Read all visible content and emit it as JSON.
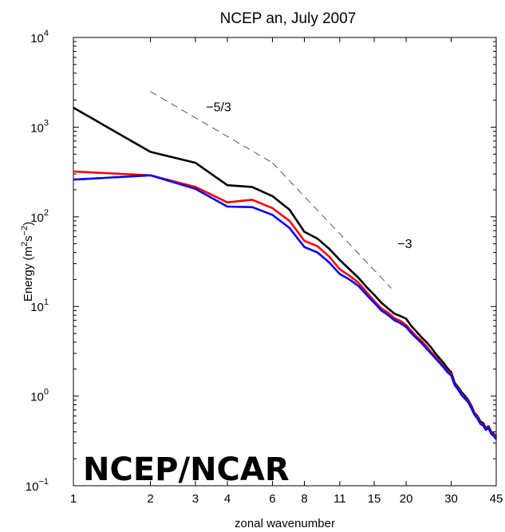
{
  "chart_data": {
    "type": "line",
    "title": "NCEP an, July 2007",
    "xlabel": "zonal wavenumber",
    "ylabel_prefix": "Energy (m",
    "ylabel_sup1": "2",
    "ylabel_mid": "s",
    "ylabel_sup2": "−2",
    "ylabel_suffix": ")",
    "xscale": "log",
    "yscale": "log",
    "xlim": [
      1,
      45
    ],
    "ylim": [
      0.1,
      10000
    ],
    "x_ticks": [
      1,
      2,
      3,
      4,
      6,
      8,
      11,
      15,
      20,
      30,
      45
    ],
    "x_tick_labels": [
      "1",
      "2",
      "3",
      "4",
      "6",
      "8",
      "11",
      "15",
      "20",
      "30",
      "45"
    ],
    "y_ticks": [
      {
        "value": 0.1,
        "base": "10",
        "exp": "−1"
      },
      {
        "value": 1,
        "base": "10",
        "exp": "0"
      },
      {
        "value": 10,
        "base": "10",
        "exp": "1"
      },
      {
        "value": 100,
        "base": "10",
        "exp": "2"
      },
      {
        "value": 1000,
        "base": "10",
        "exp": "3"
      },
      {
        "value": 10000,
        "base": "10",
        "exp": "4"
      }
    ],
    "grid": false,
    "legend": "none",
    "watermark": "NCEP/NCAR",
    "series": [
      {
        "color": "#000000",
        "x": [
          1,
          2,
          3,
          4,
          5,
          6,
          7,
          8,
          9,
          10,
          11,
          12,
          13,
          14,
          15,
          16,
          17,
          18,
          19,
          20,
          21,
          22,
          23,
          24,
          25,
          26,
          27,
          28,
          29,
          30,
          31,
          32,
          33,
          34,
          35,
          36,
          37,
          38,
          39,
          40,
          41,
          42,
          43,
          44,
          45
        ],
        "y": [
          1650,
          530,
          400,
          225,
          215,
          170,
          120,
          68,
          57,
          44,
          33,
          26,
          21,
          16.5,
          13.5,
          11,
          9.5,
          8.3,
          7.8,
          7.3,
          6.0,
          5.2,
          4.5,
          4.0,
          3.5,
          3.0,
          2.65,
          2.35,
          2.05,
          1.85,
          1.4,
          1.25,
          1.1,
          1.0,
          0.9,
          0.78,
          0.65,
          0.6,
          0.52,
          0.5,
          0.44,
          0.46,
          0.4,
          0.38,
          0.35
        ]
      },
      {
        "color": "#ff0000",
        "x": [
          1,
          2,
          3,
          4,
          5,
          6,
          7,
          8,
          9,
          10,
          11,
          12,
          13,
          14,
          15,
          16,
          17,
          18,
          19,
          20,
          21,
          22,
          23,
          24,
          25,
          26,
          27,
          28,
          29,
          30,
          31,
          32,
          33,
          34,
          35,
          36,
          37,
          38,
          39,
          40,
          41,
          42,
          43,
          44,
          45
        ],
        "y": [
          320,
          290,
          215,
          145,
          155,
          125,
          90,
          54,
          47,
          36,
          26,
          22,
          18.5,
          14.5,
          11.5,
          9.5,
          8.5,
          7.4,
          6.9,
          6.2,
          5.3,
          4.6,
          4.1,
          3.6,
          3.1,
          2.75,
          2.45,
          2.15,
          1.9,
          1.75,
          1.35,
          1.2,
          1.05,
          0.95,
          0.87,
          0.75,
          0.64,
          0.58,
          0.5,
          0.48,
          0.43,
          0.45,
          0.39,
          0.37,
          0.34
        ]
      },
      {
        "color": "#0000ff",
        "x": [
          1,
          2,
          3,
          4,
          5,
          6,
          7,
          8,
          9,
          10,
          11,
          12,
          13,
          14,
          15,
          16,
          17,
          18,
          19,
          20,
          21,
          22,
          23,
          24,
          25,
          26,
          27,
          28,
          29,
          30,
          31,
          32,
          33,
          34,
          35,
          36,
          37,
          38,
          39,
          40,
          41,
          42,
          43,
          44,
          45
        ],
        "y": [
          260,
          290,
          205,
          130,
          128,
          105,
          75,
          46,
          40,
          31,
          23,
          20,
          17,
          13.5,
          11,
          9.0,
          8.0,
          7.0,
          6.5,
          5.9,
          5.0,
          4.4,
          3.9,
          3.4,
          3.0,
          2.65,
          2.35,
          2.1,
          1.85,
          1.7,
          1.32,
          1.17,
          1.02,
          0.93,
          0.85,
          0.73,
          0.62,
          0.56,
          0.49,
          0.47,
          0.42,
          0.44,
          0.38,
          0.36,
          0.33
        ]
      }
    ],
    "reference_lines": [
      {
        "label": "−5/3",
        "x": [
          2,
          6
        ],
        "y": [
          2500,
          400
        ],
        "label_at": [
          3.3,
          1500
        ]
      },
      {
        "label": "−3",
        "x": [
          6,
          17.5
        ],
        "y": [
          400,
          16
        ],
        "label_at": [
          18.5,
          45
        ]
      }
    ]
  }
}
